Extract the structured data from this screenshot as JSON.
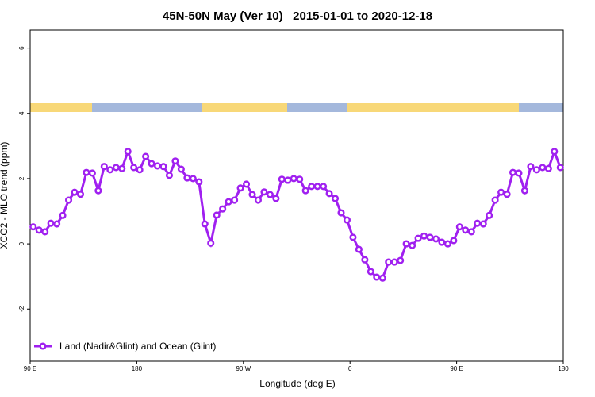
{
  "chart_data": {
    "type": "line",
    "title": "45N-50N May (Ver 10)   2015-01-01 to 2020-12-18",
    "xlabel": "Longitude (deg E)",
    "ylabel": "XCO2 - MLO trend (ppm)",
    "xlim": [
      90,
      540
    ],
    "ylim": [
      -3.6,
      6.55
    ],
    "xticks": [
      {
        "value": 90,
        "label": "90 E"
      },
      180,
      {
        "value": 270,
        "label": "90 W"
      },
      {
        "value": 360,
        "label": "0"
      },
      {
        "value": 450,
        "label": "90 E"
      },
      {
        "value": 540,
        "label": "180"
      }
    ],
    "yticks": [
      -2,
      0,
      2,
      4,
      6
    ],
    "legend": "bottom-left",
    "x": [
      92.5,
      97.5,
      102.5,
      107.5,
      112.5,
      117.5,
      122.5,
      127.5,
      132.5,
      137.5,
      142.5,
      147.5,
      152.5,
      157.5,
      162.5,
      167.5,
      172.5,
      177.5,
      182.5,
      187.5,
      192.5,
      197.5,
      202.5,
      207.5,
      212.5,
      217.5,
      222.5,
      227.5,
      232.5,
      237.5,
      242.5,
      247.5,
      252.5,
      257.5,
      262.5,
      267.5,
      272.5,
      277.5,
      282.5,
      287.5,
      292.5,
      297.5,
      302.5,
      307.5,
      312.5,
      317.5,
      322.5,
      327.5,
      332.5,
      337.5,
      342.5,
      347.5,
      352.5,
      357.5,
      362.5,
      367.5,
      372.5,
      377.5,
      382.5,
      387.5,
      392.5,
      397.5,
      402.5,
      407.5,
      412.5,
      417.5,
      422.5,
      427.5,
      432.5,
      437.5,
      442.5,
      447.5,
      452.5,
      457.5,
      462.5,
      467.5,
      472.5,
      477.5,
      482.5,
      487.5,
      492.5,
      497.5,
      502.5,
      507.5,
      512.5,
      517.5,
      522.5,
      527.5,
      532.5,
      537.5
    ],
    "series": [
      {
        "name": "Land (Nadir&Glint) and Ocean (Glint)",
        "color": "#a020f0",
        "values": [
          0.52,
          0.42,
          0.37,
          0.63,
          0.61,
          0.87,
          1.34,
          1.58,
          1.52,
          2.19,
          2.17,
          1.63,
          2.37,
          2.27,
          2.34,
          2.31,
          2.83,
          2.34,
          2.27,
          2.68,
          2.46,
          2.39,
          2.37,
          2.1,
          2.54,
          2.29,
          2.02,
          2.0,
          1.9,
          0.61,
          0.02,
          0.88,
          1.07,
          1.29,
          1.34,
          1.71,
          1.83,
          1.51,
          1.34,
          1.59,
          1.51,
          1.39,
          1.98,
          1.95,
          2.0,
          1.98,
          1.63,
          1.76,
          1.76,
          1.76,
          1.54,
          1.39,
          0.95,
          0.73,
          0.2,
          -0.17,
          -0.49,
          -0.85,
          -1.02,
          -1.05,
          -0.56,
          -0.56,
          -0.51,
          0.0,
          -0.05,
          0.17,
          0.24,
          0.2,
          0.15,
          0.05,
          0.0,
          0.1,
          0.52,
          0.42,
          0.37,
          0.63,
          0.61,
          0.87,
          1.34,
          1.58,
          1.52,
          2.19,
          2.17,
          1.63,
          2.37,
          2.27,
          2.34,
          2.31,
          2.83,
          2.34
        ]
      }
    ]
  }
}
